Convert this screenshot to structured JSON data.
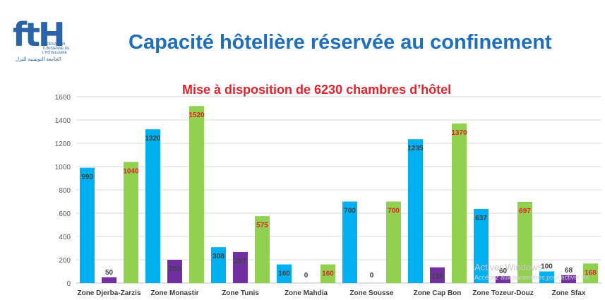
{
  "header": {
    "logo_mark": "ftH",
    "logo_sub": "Fédération Tunisienne de l'Hôtellerie",
    "logo_ar": "الجامعة التونسية للنزل",
    "title": "Capacité hôtelière réservée au confinement"
  },
  "watermark": {
    "line1": "Activer Windows",
    "line2": "Accédez aux paramètres pour activer Wi"
  },
  "colors": {
    "blue": "#00B0F0",
    "purple": "#7030A0",
    "green": "#92D050",
    "label_dark": "#404040",
    "label_red": "#e5212b"
  },
  "chart_data": {
    "type": "bar",
    "title": "Mise à disposition de 6230 chambres d’hôtel",
    "categories": [
      "Zone Djerba-Zarzis",
      "Zone Monastir",
      "Zone Tunis",
      "Zone Mahdia",
      "Zone Sousse",
      "Zone Cap Bon",
      "Zone Tozeur-Douz",
      "Zone Sfax"
    ],
    "series": [
      {
        "values": [
          990,
          1320,
          308,
          160,
          700,
          1235,
          637,
          100
        ],
        "color": "#00B0F0"
      },
      {
        "values": [
          50,
          200,
          267,
          0,
          0,
          135,
          60,
          68
        ],
        "color": "#7030A0"
      },
      {
        "values": [
          1040,
          1520,
          575,
          160,
          700,
          1370,
          697,
          168
        ],
        "color": "#92D050"
      }
    ],
    "ylim": [
      0,
      1600
    ],
    "yticks": [
      0,
      200,
      400,
      600,
      800,
      1000,
      1200,
      1400,
      1600
    ],
    "grid": true,
    "xlabel": "",
    "ylabel": ""
  }
}
